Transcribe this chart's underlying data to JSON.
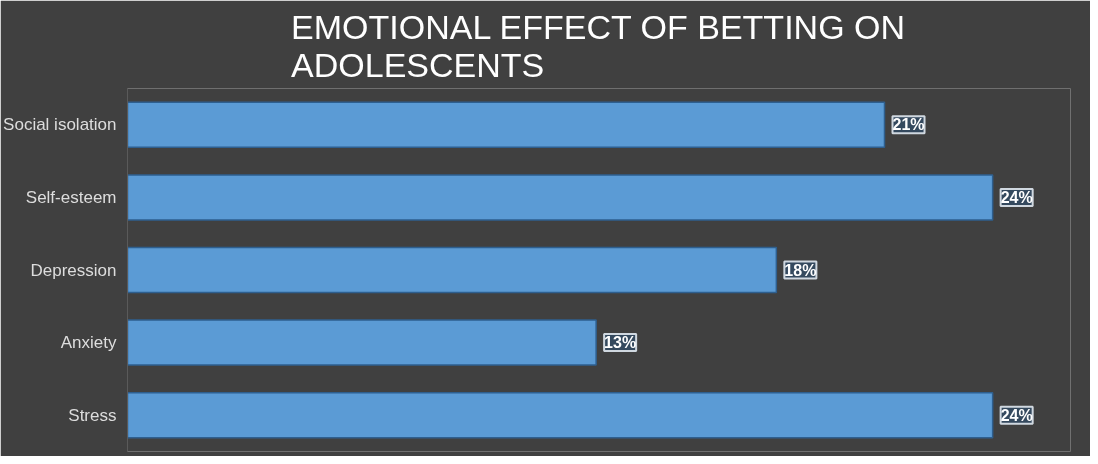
{
  "chart_data": {
    "type": "bar",
    "orientation": "horizontal",
    "title": "EMOTIONAL EFFECT OF BETTING ON ADOLESCENTS",
    "categories": [
      "Social isolation",
      "Self-esteem",
      "Depression",
      "Anxiety",
      "Stress"
    ],
    "values": [
      21,
      24,
      18,
      13,
      24
    ],
    "value_labels": [
      "21%",
      "24%",
      "18%",
      "13%",
      "24%"
    ],
    "color": "#5b9bd5",
    "grid": false,
    "tick_labels": "y"
  }
}
